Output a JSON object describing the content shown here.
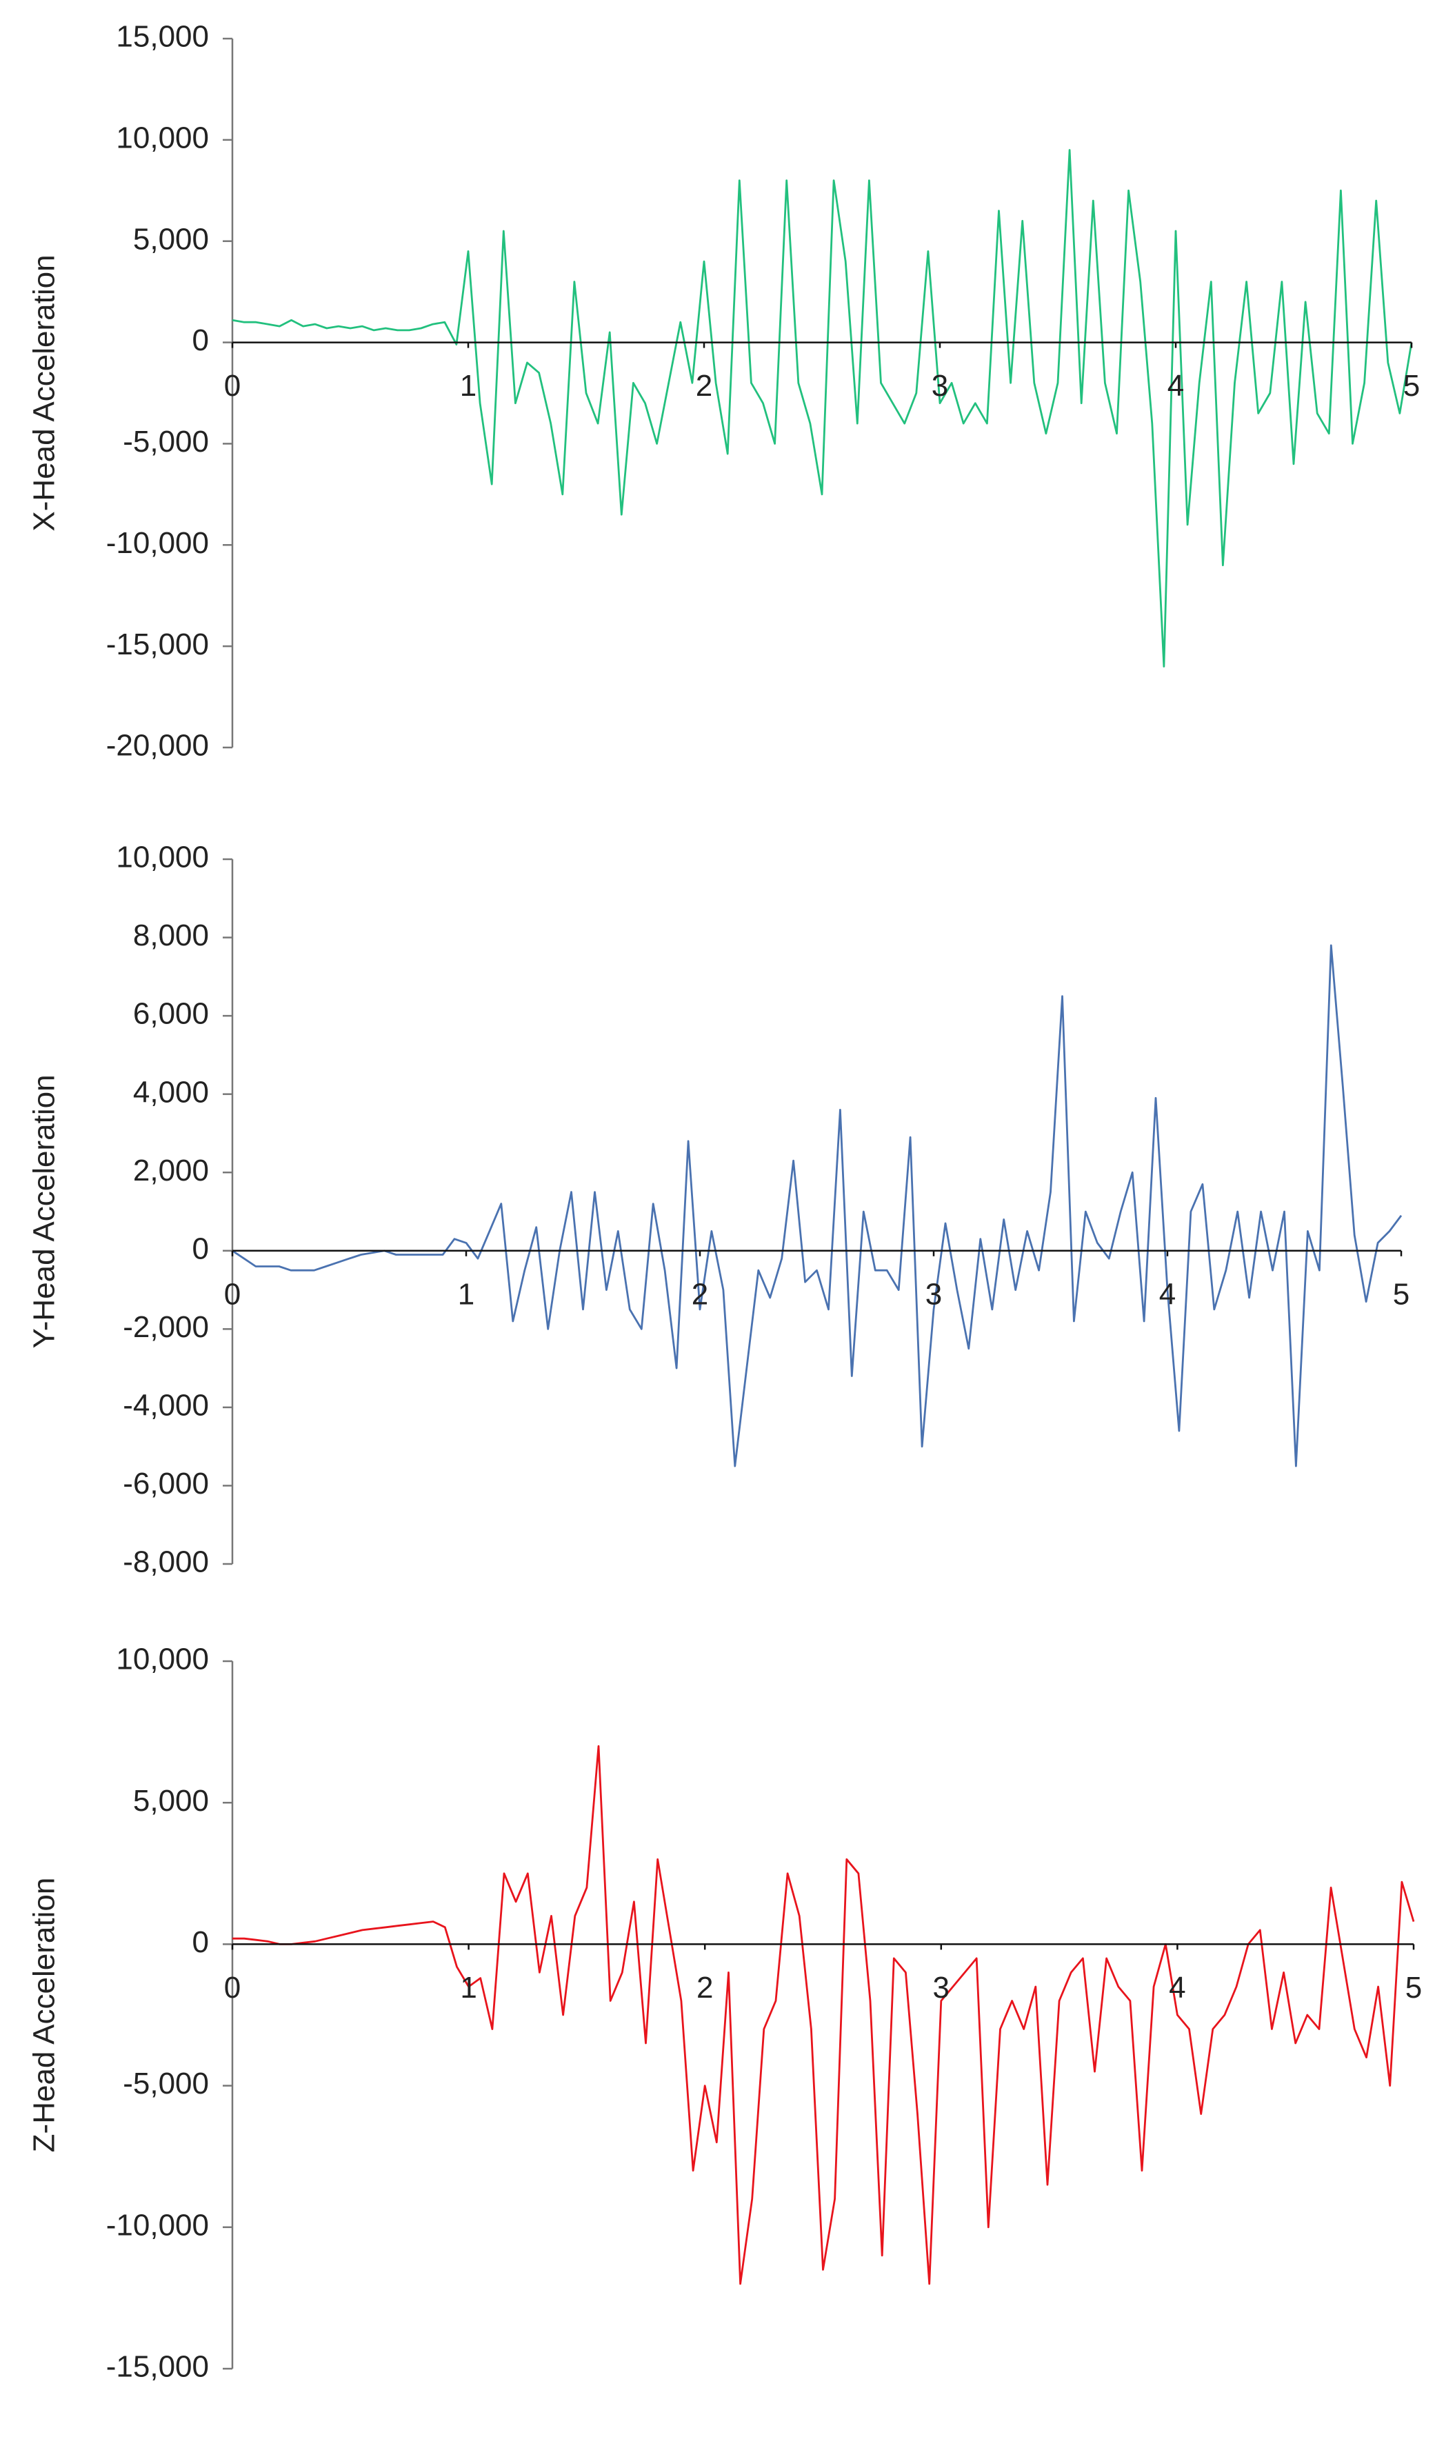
{
  "chart_data": [
    {
      "type": "line",
      "y_label": "X-Head Acceleration",
      "x": [
        0,
        0.05,
        0.1,
        0.15,
        0.2,
        0.25,
        0.3,
        0.35,
        0.4,
        0.45,
        0.5,
        0.55,
        0.6,
        0.65,
        0.7,
        0.75,
        0.8,
        0.85,
        0.9,
        0.95,
        1,
        1.05,
        1.1,
        1.15,
        1.2,
        1.25,
        1.3,
        1.35,
        1.4,
        1.45,
        1.5,
        1.55,
        1.6,
        1.65,
        1.7,
        1.75,
        1.8,
        1.85,
        1.9,
        1.95,
        2,
        2.05,
        2.1,
        2.15,
        2.2,
        2.25,
        2.3,
        2.35,
        2.4,
        2.45,
        2.5,
        2.55,
        2.6,
        2.65,
        2.7,
        2.75,
        2.8,
        2.85,
        2.9,
        2.95,
        3,
        3.05,
        3.1,
        3.15,
        3.2,
        3.25,
        3.3,
        3.35,
        3.4,
        3.45,
        3.5,
        3.55,
        3.6,
        3.65,
        3.7,
        3.75,
        3.8,
        3.85,
        3.9,
        3.95,
        4,
        4.05,
        4.1,
        4.15,
        4.2,
        4.25,
        4.3,
        4.35,
        4.4,
        4.45,
        4.5,
        4.55,
        4.6,
        4.65,
        4.7,
        4.75,
        4.8,
        4.85,
        4.9,
        4.95,
        5
      ],
      "series": [
        {
          "name": "X-Head Acceleration",
          "color": "#22c07e",
          "values": [
            1100,
            1000,
            1000,
            900,
            800,
            1100,
            800,
            900,
            700,
            800,
            700,
            800,
            600,
            700,
            600,
            600,
            700,
            900,
            1000,
            -100,
            4500,
            -3000,
            -7000,
            5500,
            -3000,
            -1000,
            -1500,
            -4000,
            -7500,
            3000,
            -2500,
            -4000,
            500,
            -8500,
            -2000,
            -3000,
            -5000,
            -2000,
            1000,
            -2000,
            4000,
            -2000,
            -5500,
            8000,
            -2000,
            -3000,
            -5000,
            8000,
            -2000,
            -4000,
            -7500,
            8000,
            4000,
            -4000,
            8000,
            -2000,
            -3000,
            -4000,
            -2500,
            4500,
            -3000,
            -2000,
            -4000,
            -3000,
            -4000,
            6500,
            -2000,
            6000,
            -2000,
            -4500,
            -2000,
            9500,
            -3000,
            7000,
            -2000,
            -4500,
            7500,
            3000,
            -4000,
            -16000,
            5500,
            -9000,
            -2000,
            3000,
            -11000,
            -2000,
            3000,
            -3500,
            -2500,
            3000,
            -6000,
            2000,
            -3500,
            -4500,
            7500,
            -5000,
            -2000,
            7000,
            -1000,
            -3500,
            0
          ]
        }
      ],
      "xlim": [
        0,
        5
      ],
      "xticks": [
        0,
        1,
        2,
        3,
        4,
        5
      ],
      "ylim": [
        -20000,
        15000
      ],
      "yticks": [
        {
          "value": -20000,
          "label": "-20,000"
        },
        {
          "value": -15000,
          "label": "-15,000"
        },
        {
          "value": -10000,
          "label": "-10,000"
        },
        {
          "value": -5000,
          "label": "-5,000"
        },
        0,
        {
          "value": 5000,
          "label": "5,000"
        },
        {
          "value": 10000,
          "label": "10,000"
        },
        {
          "value": 15000,
          "label": "15,000"
        }
      ]
    },
    {
      "type": "line",
      "y_label": "Y-Head Acceleration",
      "x": [
        0,
        0.05,
        0.1,
        0.15,
        0.2,
        0.25,
        0.3,
        0.35,
        0.4,
        0.45,
        0.5,
        0.55,
        0.6,
        0.65,
        0.7,
        0.75,
        0.8,
        0.85,
        0.9,
        0.95,
        1,
        1.05,
        1.1,
        1.15,
        1.2,
        1.25,
        1.3,
        1.35,
        1.4,
        1.45,
        1.5,
        1.55,
        1.6,
        1.65,
        1.7,
        1.75,
        1.8,
        1.85,
        1.9,
        1.95,
        2,
        2.05,
        2.1,
        2.15,
        2.2,
        2.25,
        2.3,
        2.35,
        2.4,
        2.45,
        2.5,
        2.55,
        2.6,
        2.65,
        2.7,
        2.75,
        2.8,
        2.85,
        2.9,
        2.95,
        3,
        3.05,
        3.1,
        3.15,
        3.2,
        3.25,
        3.3,
        3.35,
        3.4,
        3.45,
        3.5,
        3.55,
        3.6,
        3.65,
        3.7,
        3.75,
        3.8,
        3.85,
        3.9,
        3.95,
        4,
        4.05,
        4.1,
        4.15,
        4.2,
        4.25,
        4.3,
        4.35,
        4.4,
        4.45,
        4.5,
        4.55,
        4.6,
        4.65,
        4.7,
        4.75,
        4.8,
        4.85,
        4.9,
        4.95,
        5
      ],
      "series": [
        {
          "name": "Y-Head Acceleration",
          "color": "#4a72b0",
          "values": [
            0,
            -200,
            -400,
            -400,
            -400,
            -500,
            -500,
            -500,
            -400,
            -300,
            -200,
            -100,
            -50,
            0,
            -100,
            -100,
            -100,
            -100,
            -100,
            300,
            200,
            -200,
            500,
            1200,
            -1800,
            -500,
            600,
            -2000,
            0,
            1500,
            -1500,
            1500,
            -1000,
            500,
            -1500,
            -2000,
            1200,
            -500,
            -3000,
            2800,
            -1500,
            500,
            -1000,
            -5500,
            -3000,
            -500,
            -1200,
            -200,
            2300,
            -800,
            -500,
            -1500,
            3600,
            -3200,
            1000,
            -500,
            -500,
            -1000,
            2900,
            -5000,
            -1500,
            700,
            -1000,
            -2500,
            300,
            -1500,
            800,
            -1000,
            500,
            -500,
            1500,
            6500,
            -1800,
            1000,
            200,
            -200,
            1000,
            2000,
            -1800,
            3900,
            -1000,
            -4600,
            1000,
            1700,
            -1500,
            -500,
            1000,
            -1200,
            1000,
            -500,
            1000,
            -5500,
            500,
            -500,
            7800,
            4200,
            400,
            -1300,
            200,
            500,
            900
          ]
        }
      ],
      "xlim": [
        0,
        5
      ],
      "xticks": [
        0,
        1,
        2,
        3,
        4,
        5
      ],
      "ylim": [
        -8000,
        10000
      ],
      "yticks": [
        {
          "value": -8000,
          "label": "-8,000"
        },
        {
          "value": -6000,
          "label": "-6,000"
        },
        {
          "value": -4000,
          "label": "-4,000"
        },
        {
          "value": -2000,
          "label": "-2,000"
        },
        0,
        {
          "value": 2000,
          "label": "2,000"
        },
        {
          "value": 4000,
          "label": "4,000"
        },
        {
          "value": 6000,
          "label": "6,000"
        },
        {
          "value": 8000,
          "label": "8,000"
        },
        {
          "value": 10000,
          "label": "10,000"
        }
      ]
    },
    {
      "type": "line",
      "y_label": "Z-Head Acceleration",
      "x": [
        0,
        0.05,
        0.1,
        0.15,
        0.2,
        0.25,
        0.3,
        0.35,
        0.4,
        0.45,
        0.5,
        0.55,
        0.6,
        0.65,
        0.7,
        0.75,
        0.8,
        0.85,
        0.9,
        0.95,
        1,
        1.05,
        1.1,
        1.15,
        1.2,
        1.25,
        1.3,
        1.35,
        1.4,
        1.45,
        1.5,
        1.55,
        1.6,
        1.65,
        1.7,
        1.75,
        1.8,
        1.85,
        1.9,
        1.95,
        2,
        2.05,
        2.1,
        2.15,
        2.2,
        2.25,
        2.3,
        2.35,
        2.4,
        2.45,
        2.5,
        2.55,
        2.6,
        2.65,
        2.7,
        2.75,
        2.8,
        2.85,
        2.9,
        2.95,
        3,
        3.05,
        3.1,
        3.15,
        3.2,
        3.25,
        3.3,
        3.35,
        3.4,
        3.45,
        3.5,
        3.55,
        3.6,
        3.65,
        3.7,
        3.75,
        3.8,
        3.85,
        3.9,
        3.95,
        4,
        4.05,
        4.1,
        4.15,
        4.2,
        4.25,
        4.3,
        4.35,
        4.4,
        4.45,
        4.5,
        4.55,
        4.6,
        4.65,
        4.7,
        4.75,
        4.8,
        4.85,
        4.9,
        4.95,
        5
      ],
      "series": [
        {
          "name": "Z-Head Acceleration",
          "color": "#e8141c",
          "values": [
            200,
            200,
            150,
            100,
            0,
            0,
            50,
            100,
            200,
            300,
            400,
            500,
            550,
            600,
            650,
            700,
            750,
            800,
            600,
            -800,
            -1500,
            -1200,
            -3000,
            2500,
            1500,
            2500,
            -1000,
            1000,
            -2500,
            1000,
            2000,
            7000,
            -2000,
            -1000,
            1500,
            -3500,
            3000,
            500,
            -2000,
            -8000,
            -5000,
            -7000,
            -1000,
            -12000,
            -9000,
            -3000,
            -2000,
            2500,
            1000,
            -3000,
            -11500,
            -9000,
            3000,
            2500,
            -2000,
            -11000,
            -500,
            -1000,
            -6000,
            -12000,
            -2000,
            -1500,
            -1000,
            -500,
            -10000,
            -3000,
            -2000,
            -3000,
            -1500,
            -8500,
            -2000,
            -1000,
            -500,
            -4500,
            -500,
            -1500,
            -2000,
            -8000,
            -1500,
            0,
            -2500,
            -3000,
            -6000,
            -3000,
            -2500,
            -1500,
            0,
            500,
            -3000,
            -1000,
            -3500,
            -2500,
            -3000,
            2000,
            -500,
            -3000,
            -4000,
            -1500,
            -5000,
            2200,
            800
          ]
        }
      ],
      "xlim": [
        0,
        5
      ],
      "xticks": [
        0,
        1,
        2,
        3,
        4,
        5
      ],
      "ylim": [
        -15000,
        10000
      ],
      "yticks": [
        {
          "value": -15000,
          "label": "-15,000"
        },
        {
          "value": -10000,
          "label": "-10,000"
        },
        {
          "value": -5000,
          "label": "-5,000"
        },
        0,
        {
          "value": 5000,
          "label": "5,000"
        },
        {
          "value": 10000,
          "label": "10,000"
        }
      ]
    }
  ]
}
